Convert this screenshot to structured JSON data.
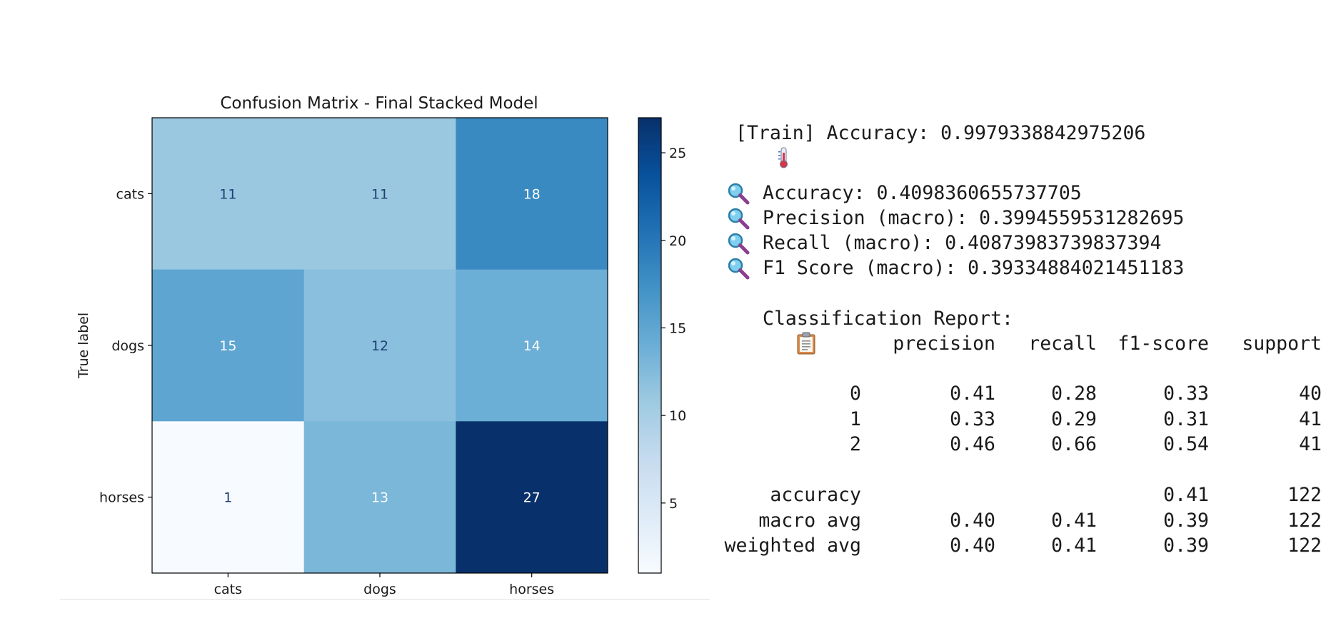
{
  "chart_data": {
    "type": "heatmap",
    "title": "Confusion Matrix - Final Stacked Model",
    "ylabel": "True label",
    "xlabel": "",
    "x_categories": [
      "cats",
      "dogs",
      "horses"
    ],
    "y_categories": [
      "cats",
      "dogs",
      "horses"
    ],
    "values": [
      [
        11,
        11,
        18
      ],
      [
        15,
        12,
        14
      ],
      [
        1,
        13,
        27
      ]
    ],
    "colormap": "Blues",
    "colorbar": {
      "min": 1,
      "max": 27,
      "ticks": [
        5,
        10,
        15,
        20,
        25
      ]
    },
    "grid": false
  },
  "output": {
    "train_line": "[Train] Accuracy: 0.9979338842975206",
    "metrics": [
      "Accuracy: 0.4098360655737705",
      "Precision (macro): 0.3994559531282695",
      "Recall (macro): 0.40873983739837394",
      "F1 Score (macro): 0.39334884021451183"
    ],
    "report_title": "Classification Report:",
    "report": {
      "headers": [
        "precision",
        "recall",
        "f1-score",
        "support"
      ],
      "rows": [
        [
          "0",
          "0.41",
          "0.28",
          "0.33",
          "40"
        ],
        [
          "1",
          "0.33",
          "0.29",
          "0.31",
          "41"
        ],
        [
          "2",
          "0.46",
          "0.66",
          "0.54",
          "41"
        ]
      ],
      "summary": [
        [
          "accuracy",
          "",
          "",
          "0.41",
          "122"
        ],
        [
          "macro avg",
          "0.40",
          "0.41",
          "0.39",
          "122"
        ],
        [
          "weighted avg",
          "0.40",
          "0.41",
          "0.39",
          "122"
        ]
      ]
    },
    "icons": {
      "train": "thermometer-icon",
      "metric": "magnifying-glass-icon",
      "report": "clipboard-icon"
    }
  }
}
